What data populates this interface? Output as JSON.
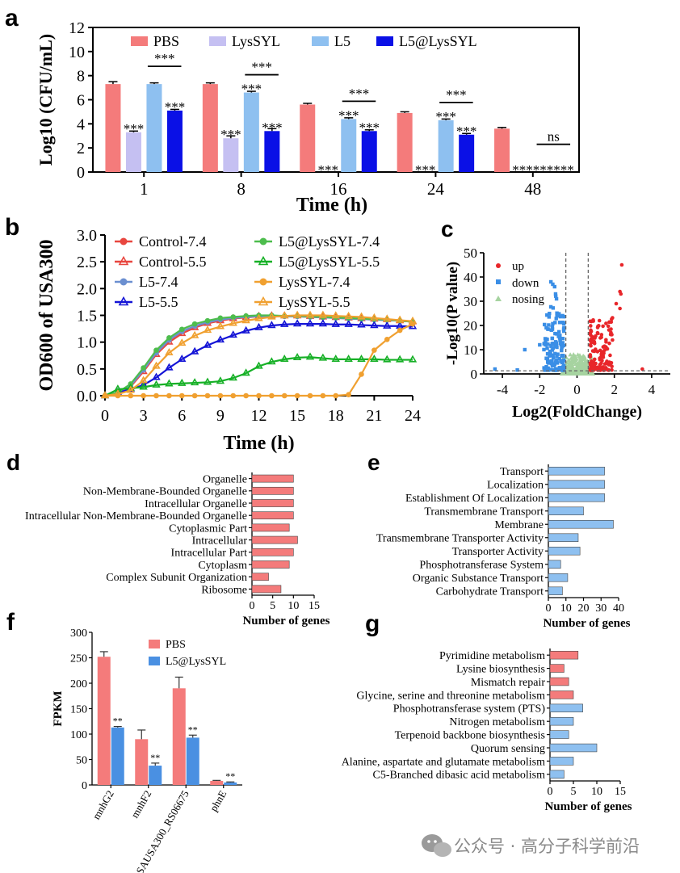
{
  "panels": {
    "a": "a",
    "b": "b",
    "c": "c",
    "d": "d",
    "e": "e",
    "f": "f",
    "g": "g"
  },
  "watermark": "公众号 · 高分子科学前沿",
  "chart_data": [
    {
      "id": "a",
      "type": "bar",
      "xlabel": "Time (h)",
      "ylabel": "Log10 (CFU/mL)",
      "ylim": [
        0,
        12
      ],
      "yticks": [
        0,
        2,
        4,
        6,
        8,
        10,
        12
      ],
      "categories": [
        "1",
        "8",
        "16",
        "24",
        "48"
      ],
      "series": [
        {
          "name": "PBS",
          "color": "#f47b7b",
          "values": [
            7.3,
            7.3,
            5.6,
            4.9,
            3.6
          ],
          "errors": [
            0.2,
            0.1,
            0.1,
            0.1,
            0.1
          ]
        },
        {
          "name": "LysSYL",
          "color": "#c5c0f2",
          "values": [
            3.3,
            2.8,
            0,
            0,
            0
          ],
          "errors": [
            0.1,
            0.2,
            0,
            0,
            0
          ]
        },
        {
          "name": "L5",
          "color": "#8ec0f0",
          "values": [
            7.3,
            6.6,
            4.4,
            4.3,
            0
          ],
          "errors": [
            0.1,
            0.1,
            0.1,
            0.1,
            0
          ]
        },
        {
          "name": "L5@LysSYL",
          "color": "#0a10e6",
          "values": [
            5.1,
            3.4,
            3.4,
            3.1,
            0
          ],
          "errors": [
            0.1,
            0.2,
            0.1,
            0.1,
            0
          ]
        }
      ],
      "significance": [
        {
          "group": 0,
          "labels": [
            "",
            "***",
            "",
            "***"
          ],
          "bracket": "***"
        },
        {
          "group": 1,
          "labels": [
            "",
            "***",
            "***",
            "***"
          ],
          "bracket": "***"
        },
        {
          "group": 2,
          "labels": [
            "",
            "***",
            "***",
            "***"
          ],
          "bracket": "***"
        },
        {
          "group": 3,
          "labels": [
            "",
            "***",
            "***",
            "***"
          ],
          "bracket": "***"
        },
        {
          "group": 4,
          "labels": [
            "",
            "***",
            "***",
            "***"
          ],
          "bracket": "ns"
        }
      ],
      "legend_position": "top"
    },
    {
      "id": "b",
      "type": "line",
      "xlabel": "Time (h)",
      "ylabel": "OD600 of USA300",
      "xlim": [
        0,
        24
      ],
      "ylim": [
        0,
        3.0
      ],
      "xticks": [
        0,
        3,
        6,
        9,
        12,
        15,
        18,
        21,
        24
      ],
      "yticks": [
        "0.0",
        "0.5",
        "1.0",
        "1.5",
        "2.0",
        "2.5",
        "3.0"
      ],
      "x": [
        0,
        1,
        2,
        3,
        4,
        5,
        6,
        7,
        8,
        9,
        10,
        11,
        12,
        13,
        14,
        15,
        16,
        17,
        18,
        19,
        20,
        21,
        22,
        23,
        24
      ],
      "series": [
        {
          "name": "Control-7.4",
          "color": "#e8463f",
          "marker": "circle",
          "values": [
            0,
            0.05,
            0.2,
            0.5,
            0.82,
            1.04,
            1.2,
            1.3,
            1.37,
            1.42,
            1.45,
            1.47,
            1.48,
            1.48,
            1.48,
            1.48,
            1.47,
            1.46,
            1.45,
            1.44,
            1.43,
            1.42,
            1.41,
            1.4,
            1.38
          ]
        },
        {
          "name": "Control-5.5",
          "color": "#e8463f",
          "marker": "triangle-open",
          "values": [
            0,
            0.04,
            0.17,
            0.45,
            0.77,
            1.0,
            1.16,
            1.27,
            1.35,
            1.4,
            1.44,
            1.46,
            1.48,
            1.49,
            1.49,
            1.49,
            1.48,
            1.47,
            1.46,
            1.45,
            1.44,
            1.43,
            1.42,
            1.4,
            1.38
          ]
        },
        {
          "name": "L5-7.4",
          "color": "#6b8fd0",
          "marker": "circle",
          "values": [
            0,
            0.05,
            0.19,
            0.48,
            0.8,
            1.04,
            1.2,
            1.3,
            1.37,
            1.42,
            1.45,
            1.47,
            1.48,
            1.48,
            1.48,
            1.48,
            1.47,
            1.46,
            1.45,
            1.44,
            1.43,
            1.42,
            1.41,
            1.4,
            1.38
          ]
        },
        {
          "name": "L5-5.5",
          "color": "#1414d6",
          "marker": "triangle-open",
          "values": [
            0,
            0.06,
            0.12,
            0.2,
            0.34,
            0.52,
            0.68,
            0.82,
            0.94,
            1.04,
            1.13,
            1.21,
            1.27,
            1.31,
            1.33,
            1.34,
            1.34,
            1.34,
            1.33,
            1.33,
            1.32,
            1.31,
            1.3,
            1.3,
            1.29
          ]
        },
        {
          "name": "L5@LysSYL-7.4",
          "color": "#4dbd4d",
          "marker": "circle",
          "values": [
            0,
            0.06,
            0.22,
            0.52,
            0.85,
            1.08,
            1.24,
            1.34,
            1.4,
            1.45,
            1.47,
            1.49,
            1.5,
            1.5,
            1.49,
            1.49,
            1.48,
            1.47,
            1.46,
            1.45,
            1.44,
            1.43,
            1.42,
            1.4,
            1.38
          ]
        },
        {
          "name": "L5@LysSYL-5.5",
          "color": "#16b026",
          "marker": "triangle-open",
          "values": [
            0,
            0.12,
            0.14,
            0.16,
            0.2,
            0.22,
            0.23,
            0.24,
            0.25,
            0.27,
            0.33,
            0.42,
            0.55,
            0.63,
            0.68,
            0.71,
            0.72,
            0.7,
            0.68,
            0.68,
            0.68,
            0.68,
            0.67,
            0.67,
            0.67
          ]
        },
        {
          "name": "LysSYL-7.4",
          "color": "#f0a030",
          "marker": "circle",
          "values": [
            0,
            0,
            0,
            0,
            0,
            0,
            0,
            0,
            0,
            0,
            0,
            0,
            0,
            0,
            0,
            0,
            0,
            0,
            0,
            0.02,
            0.4,
            0.85,
            1.05,
            1.22,
            1.34
          ]
        },
        {
          "name": "LysSYL-5.5",
          "color": "#f0a030",
          "marker": "triangle-open",
          "values": [
            0,
            0.03,
            0.1,
            0.28,
            0.55,
            0.8,
            0.98,
            1.12,
            1.22,
            1.29,
            1.35,
            1.4,
            1.44,
            1.47,
            1.49,
            1.5,
            1.5,
            1.5,
            1.49,
            1.48,
            1.47,
            1.45,
            1.43,
            1.41,
            1.39
          ]
        }
      ],
      "legend_position": "top"
    },
    {
      "id": "c",
      "type": "scatter",
      "xlabel": "Log2(FoldChange)",
      "ylabel": "-Log10(P value)",
      "xlim": [
        -5,
        5
      ],
      "ylim": [
        0,
        50
      ],
      "xticks": [
        -4,
        -2,
        0,
        2,
        4
      ],
      "yticks": [
        0,
        10,
        20,
        30,
        40,
        50
      ],
      "thresholds": {
        "x": [
          -0.6,
          0.6
        ],
        "y": 1.3
      },
      "series": [
        {
          "name": "up",
          "color": "#e8262a"
        },
        {
          "name": "down",
          "color": "#3a8ee6"
        },
        {
          "name": "nosing",
          "color": "#a6d3a0"
        }
      ],
      "legend_position": "top-left"
    },
    {
      "id": "d",
      "type": "bar",
      "orientation": "horizontal",
      "xlabel": "Number of genes",
      "xlim": [
        0,
        15
      ],
      "xticks": [
        0,
        5,
        10,
        15
      ],
      "color": "#f47b7b",
      "categories": [
        "Organelle",
        "Non-Membrane-Bounded Organelle",
        "Intracellular Organelle",
        "Intracellular Non-Membrane-Bounded Organelle",
        "Cytoplasmic Part",
        "Intracellular",
        "Intracellular Part",
        "Cytoplasm",
        "Complex Subunit Organization",
        "Ribosome"
      ],
      "values": [
        10,
        10,
        10,
        10,
        9,
        11,
        10,
        9,
        4,
        7
      ]
    },
    {
      "id": "e",
      "type": "bar",
      "orientation": "horizontal",
      "xlabel": "Number of genes",
      "xlim": [
        0,
        40
      ],
      "xticks": [
        0,
        10,
        20,
        30,
        40
      ],
      "color": "#8ec0f0",
      "categories": [
        "Transport",
        "Localization",
        "Establishment Of Localization",
        "Transmembrane Transport",
        "Membrane",
        "Transmembrane Transporter Activity",
        "Transporter Activity",
        "Phosphotransferase System",
        "Organic Substance Transport",
        "Carbohydrate Transport"
      ],
      "values": [
        32,
        32,
        32,
        20,
        37,
        17,
        18,
        7,
        11,
        8
      ]
    },
    {
      "id": "f",
      "type": "bar",
      "ylabel": "FPKM",
      "ylim": [
        0,
        300
      ],
      "yticks": [
        0,
        50,
        100,
        150,
        200,
        250,
        300
      ],
      "categories": [
        "mnhG2",
        "mnhF2",
        "SAUSA300_RS06675",
        "phnE"
      ],
      "series": [
        {
          "name": "PBS",
          "color": "#f47b7b",
          "values": [
            252,
            90,
            190,
            8
          ],
          "errors": [
            10,
            18,
            22,
            1
          ]
        },
        {
          "name": "L5@LysSYL",
          "color": "#4a90e2",
          "values": [
            113,
            38,
            93,
            5
          ],
          "errors": [
            2,
            5,
            5,
            1
          ]
        }
      ],
      "significance": [
        "**",
        "**",
        "**",
        "**"
      ],
      "legend_position": "top-right"
    },
    {
      "id": "g",
      "type": "bar",
      "orientation": "horizontal",
      "xlabel": "Number of genes",
      "xlim": [
        0,
        15
      ],
      "xticks": [
        0,
        5,
        10,
        15
      ],
      "colors": [
        "#f47b7b",
        "#f47b7b",
        "#f47b7b",
        "#f47b7b",
        "#8ec0f0",
        "#8ec0f0",
        "#8ec0f0",
        "#8ec0f0",
        "#8ec0f0",
        "#8ec0f0"
      ],
      "categories": [
        "Pyrimidine metabolism",
        "Lysine biosynthesis",
        "Mismatch repair",
        "Glycine, serine and threonine metabolism",
        "Phosphotransferase system (PTS)",
        "Nitrogen metabolism",
        "Terpenoid backbone biosynthesis",
        "Quorum sensing",
        "Alanine, aspartate and glutamate metabolism",
        "C5-Branched dibasic acid metabolism"
      ],
      "values": [
        6,
        3,
        4,
        5,
        7,
        5,
        4,
        10,
        5,
        3
      ]
    }
  ]
}
